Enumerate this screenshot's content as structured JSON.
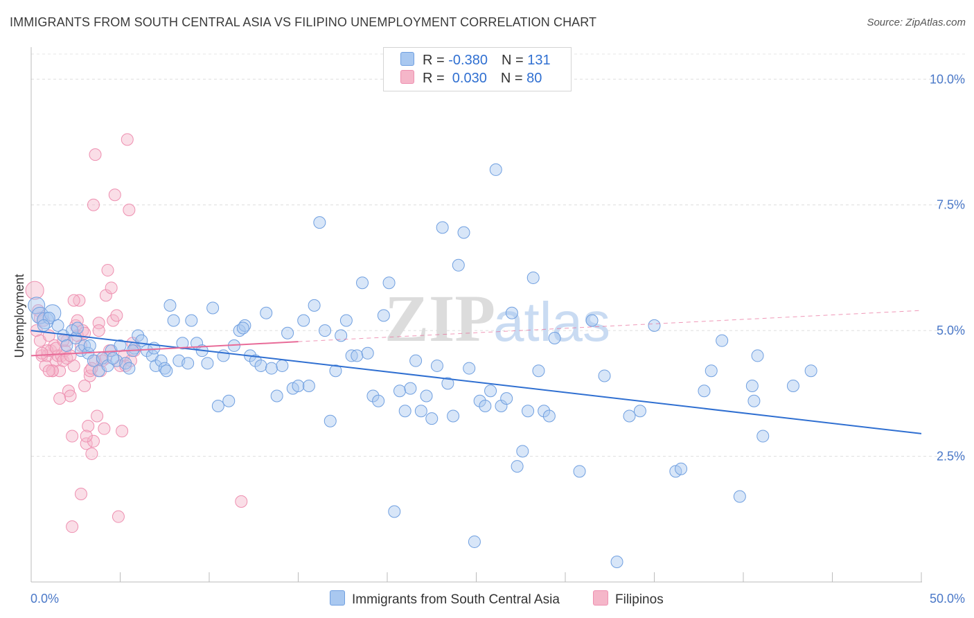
{
  "header": {
    "title": "IMMIGRANTS FROM SOUTH CENTRAL ASIA VS FILIPINO UNEMPLOYMENT CORRELATION CHART",
    "source": "Source: ZipAtlas.com"
  },
  "watermark": {
    "zip": "ZIP",
    "atlas": "atlas"
  },
  "legend": {
    "rows": [
      {
        "r_label": "R = ",
        "r_value": "-0.380",
        "n_label": "N = ",
        "n_value": "131",
        "color": "#a9c8f0"
      },
      {
        "r_label": "R = ",
        "r_value": " 0.030",
        "n_label": "N = ",
        "n_value": "80",
        "color": "#f5b6c9"
      }
    ]
  },
  "chart_data": {
    "type": "scatter",
    "title": "IMMIGRANTS FROM SOUTH CENTRAL ASIA VS FILIPINO UNEMPLOYMENT CORRELATION CHART",
    "xlabel": "",
    "ylabel": "Unemployment",
    "xlim": [
      0,
      50
    ],
    "ylim": [
      0,
      10.5
    ],
    "x_tick_labels": [
      "0.0%",
      "50.0%"
    ],
    "y_ticks": [
      2.5,
      5.0,
      7.5,
      10.0
    ],
    "y_tick_labels": [
      "2.5%",
      "5.0%",
      "7.5%",
      "10.0%"
    ],
    "grid": "horizontal dashed",
    "legend_position": "top-center and bottom",
    "series": [
      {
        "name": "Immigrants from South Central Asia",
        "color": "#6f9fe0",
        "fill": "#a9c8f0",
        "trend": {
          "x": [
            0,
            50
          ],
          "y": [
            5.0,
            2.95
          ],
          "color": "#2f6fd1",
          "dashed_extension": false
        },
        "points": [
          [
            0.3,
            5.5
          ],
          [
            0.5,
            5.3
          ],
          [
            0.8,
            5.2
          ],
          [
            1.2,
            5.35
          ],
          [
            1.5,
            5.1
          ],
          [
            1.8,
            4.9
          ],
          [
            2.0,
            4.7
          ],
          [
            2.3,
            5.0
          ],
          [
            2.5,
            4.85
          ],
          [
            2.8,
            4.6
          ],
          [
            3.0,
            4.7
          ],
          [
            3.2,
            4.55
          ],
          [
            3.5,
            4.4
          ],
          [
            3.8,
            4.2
          ],
          [
            4.0,
            4.45
          ],
          [
            4.3,
            4.3
          ],
          [
            4.5,
            4.6
          ],
          [
            4.8,
            4.4
          ],
          [
            5.0,
            4.7
          ],
          [
            5.3,
            4.35
          ],
          [
            5.5,
            4.25
          ],
          [
            5.8,
            4.65
          ],
          [
            6.0,
            4.9
          ],
          [
            6.2,
            4.8
          ],
          [
            6.5,
            4.6
          ],
          [
            6.8,
            4.5
          ],
          [
            7.0,
            4.3
          ],
          [
            7.3,
            4.4
          ],
          [
            7.5,
            4.25
          ],
          [
            7.8,
            5.5
          ],
          [
            8.0,
            5.2
          ],
          [
            8.3,
            4.4
          ],
          [
            8.5,
            4.75
          ],
          [
            8.8,
            4.35
          ],
          [
            9.0,
            5.2
          ],
          [
            9.3,
            4.75
          ],
          [
            9.6,
            4.6
          ],
          [
            9.9,
            4.35
          ],
          [
            10.2,
            5.45
          ],
          [
            10.5,
            3.5
          ],
          [
            10.8,
            4.5
          ],
          [
            11.1,
            3.6
          ],
          [
            11.4,
            4.7
          ],
          [
            11.7,
            5.0
          ],
          [
            12.0,
            5.1
          ],
          [
            12.3,
            4.5
          ],
          [
            12.6,
            4.4
          ],
          [
            12.9,
            4.3
          ],
          [
            13.2,
            5.35
          ],
          [
            13.5,
            4.25
          ],
          [
            13.8,
            3.7
          ],
          [
            14.1,
            4.3
          ],
          [
            14.4,
            4.95
          ],
          [
            14.7,
            3.85
          ],
          [
            15.0,
            3.9
          ],
          [
            15.3,
            5.2
          ],
          [
            15.6,
            3.9
          ],
          [
            15.9,
            5.5
          ],
          [
            16.2,
            7.15
          ],
          [
            16.5,
            5.0
          ],
          [
            16.8,
            3.2
          ],
          [
            17.1,
            4.2
          ],
          [
            17.4,
            4.9
          ],
          [
            17.7,
            5.2
          ],
          [
            18.0,
            4.5
          ],
          [
            18.3,
            4.5
          ],
          [
            18.6,
            5.95
          ],
          [
            18.9,
            4.55
          ],
          [
            19.2,
            3.7
          ],
          [
            19.5,
            3.6
          ],
          [
            19.8,
            5.3
          ],
          [
            20.1,
            5.95
          ],
          [
            20.4,
            1.4
          ],
          [
            20.7,
            3.8
          ],
          [
            21.0,
            3.4
          ],
          [
            21.3,
            3.85
          ],
          [
            21.6,
            4.4
          ],
          [
            21.9,
            3.4
          ],
          [
            22.2,
            3.7
          ],
          [
            22.5,
            3.25
          ],
          [
            22.8,
            4.3
          ],
          [
            23.1,
            7.05
          ],
          [
            23.4,
            3.95
          ],
          [
            23.7,
            3.3
          ],
          [
            24.0,
            6.3
          ],
          [
            24.3,
            6.95
          ],
          [
            24.6,
            4.25
          ],
          [
            24.9,
            0.8
          ],
          [
            25.2,
            3.6
          ],
          [
            25.5,
            3.5
          ],
          [
            25.8,
            3.8
          ],
          [
            26.1,
            8.2
          ],
          [
            26.4,
            3.5
          ],
          [
            26.7,
            3.65
          ],
          [
            27.0,
            5.35
          ],
          [
            27.3,
            2.3
          ],
          [
            27.6,
            2.6
          ],
          [
            27.9,
            3.4
          ],
          [
            28.2,
            6.05
          ],
          [
            28.5,
            4.2
          ],
          [
            28.8,
            3.4
          ],
          [
            29.1,
            3.3
          ],
          [
            29.4,
            4.85
          ],
          [
            30.8,
            2.2
          ],
          [
            31.5,
            5.2
          ],
          [
            32.2,
            4.1
          ],
          [
            32.9,
            0.4
          ],
          [
            33.6,
            3.3
          ],
          [
            34.2,
            3.4
          ],
          [
            35.0,
            5.1
          ],
          [
            36.2,
            2.2
          ],
          [
            36.5,
            2.25
          ],
          [
            37.8,
            3.8
          ],
          [
            38.2,
            4.2
          ],
          [
            38.8,
            4.8
          ],
          [
            39.8,
            1.7
          ],
          [
            40.5,
            3.9
          ],
          [
            40.6,
            3.6
          ],
          [
            40.8,
            4.5
          ],
          [
            41.1,
            2.9
          ],
          [
            42.8,
            3.9
          ],
          [
            43.8,
            4.2
          ],
          [
            1.0,
            5.25
          ],
          [
            2.6,
            5.05
          ],
          [
            3.3,
            4.7
          ],
          [
            4.6,
            4.45
          ],
          [
            5.7,
            4.6
          ],
          [
            6.9,
            4.65
          ],
          [
            7.6,
            4.2
          ],
          [
            11.9,
            5.05
          ],
          [
            0.7,
            5.1
          ]
        ]
      },
      {
        "name": "Filipinos",
        "color": "#ee8fb0",
        "fill": "#f5b6c9",
        "trend": {
          "x": [
            0,
            15
          ],
          "y": [
            4.5,
            4.78
          ],
          "color": "#e86b98",
          "dashed_to_x": 50,
          "dashed_to_y": 5.4
        },
        "points": [
          [
            0.2,
            5.8
          ],
          [
            0.3,
            5.0
          ],
          [
            0.4,
            5.4
          ],
          [
            0.5,
            4.8
          ],
          [
            0.6,
            4.5
          ],
          [
            0.7,
            5.2
          ],
          [
            0.8,
            4.3
          ],
          [
            0.9,
            4.5
          ],
          [
            1.0,
            4.9
          ],
          [
            1.1,
            4.6
          ],
          [
            1.2,
            4.2
          ],
          [
            1.3,
            4.7
          ],
          [
            1.4,
            4.4
          ],
          [
            1.5,
            4.5
          ],
          [
            1.6,
            4.2
          ],
          [
            1.7,
            4.5
          ],
          [
            1.8,
            4.4
          ],
          [
            1.9,
            4.6
          ],
          [
            2.0,
            4.8
          ],
          [
            2.1,
            3.8
          ],
          [
            2.2,
            3.7
          ],
          [
            2.3,
            2.9
          ],
          [
            2.4,
            4.3
          ],
          [
            2.5,
            5.1
          ],
          [
            2.6,
            5.2
          ],
          [
            2.7,
            5.6
          ],
          [
            2.8,
            1.75
          ],
          [
            2.9,
            5.0
          ],
          [
            3.0,
            3.9
          ],
          [
            3.1,
            2.75
          ],
          [
            3.2,
            3.1
          ],
          [
            3.3,
            4.1
          ],
          [
            3.4,
            2.55
          ],
          [
            3.5,
            2.8
          ],
          [
            3.6,
            4.4
          ],
          [
            3.7,
            3.3
          ],
          [
            3.8,
            5.15
          ],
          [
            3.9,
            4.2
          ],
          [
            4.0,
            4.4
          ],
          [
            4.1,
            3.05
          ],
          [
            4.2,
            5.7
          ],
          [
            4.3,
            6.2
          ],
          [
            4.4,
            4.6
          ],
          [
            4.5,
            5.85
          ],
          [
            4.6,
            5.2
          ],
          [
            4.7,
            7.7
          ],
          [
            4.8,
            5.3
          ],
          [
            4.9,
            1.3
          ],
          [
            5.0,
            4.3
          ],
          [
            5.1,
            3.0
          ],
          [
            5.2,
            4.5
          ],
          [
            5.3,
            4.3
          ],
          [
            5.4,
            8.8
          ],
          [
            5.5,
            7.4
          ],
          [
            5.6,
            4.4
          ],
          [
            5.7,
            4.75
          ],
          [
            5.8,
            4.6
          ],
          [
            2.3,
            1.1
          ],
          [
            3.6,
            8.5
          ],
          [
            3.5,
            7.5
          ],
          [
            11.8,
            1.6
          ],
          [
            0.9,
            4.6
          ],
          [
            1.2,
            4.2
          ],
          [
            1.6,
            3.65
          ],
          [
            2.0,
            4.45
          ],
          [
            2.4,
            5.6
          ],
          [
            2.8,
            4.7
          ],
          [
            3.1,
            2.9
          ],
          [
            3.3,
            4.2
          ],
          [
            3.8,
            5.0
          ],
          [
            4.2,
            4.45
          ],
          [
            0.5,
            5.25
          ],
          [
            0.6,
            4.55
          ],
          [
            1.0,
            4.2
          ],
          [
            1.4,
            4.65
          ],
          [
            1.8,
            4.8
          ],
          [
            2.2,
            4.5
          ],
          [
            2.6,
            4.9
          ],
          [
            3.0,
            4.95
          ],
          [
            3.4,
            4.25
          ]
        ]
      }
    ]
  },
  "bottom_legend": {
    "items": [
      {
        "label": "Immigrants from South Central Asia",
        "color": "#a9c8f0"
      },
      {
        "label": "Filipinos",
        "color": "#f5b6c9"
      }
    ]
  }
}
